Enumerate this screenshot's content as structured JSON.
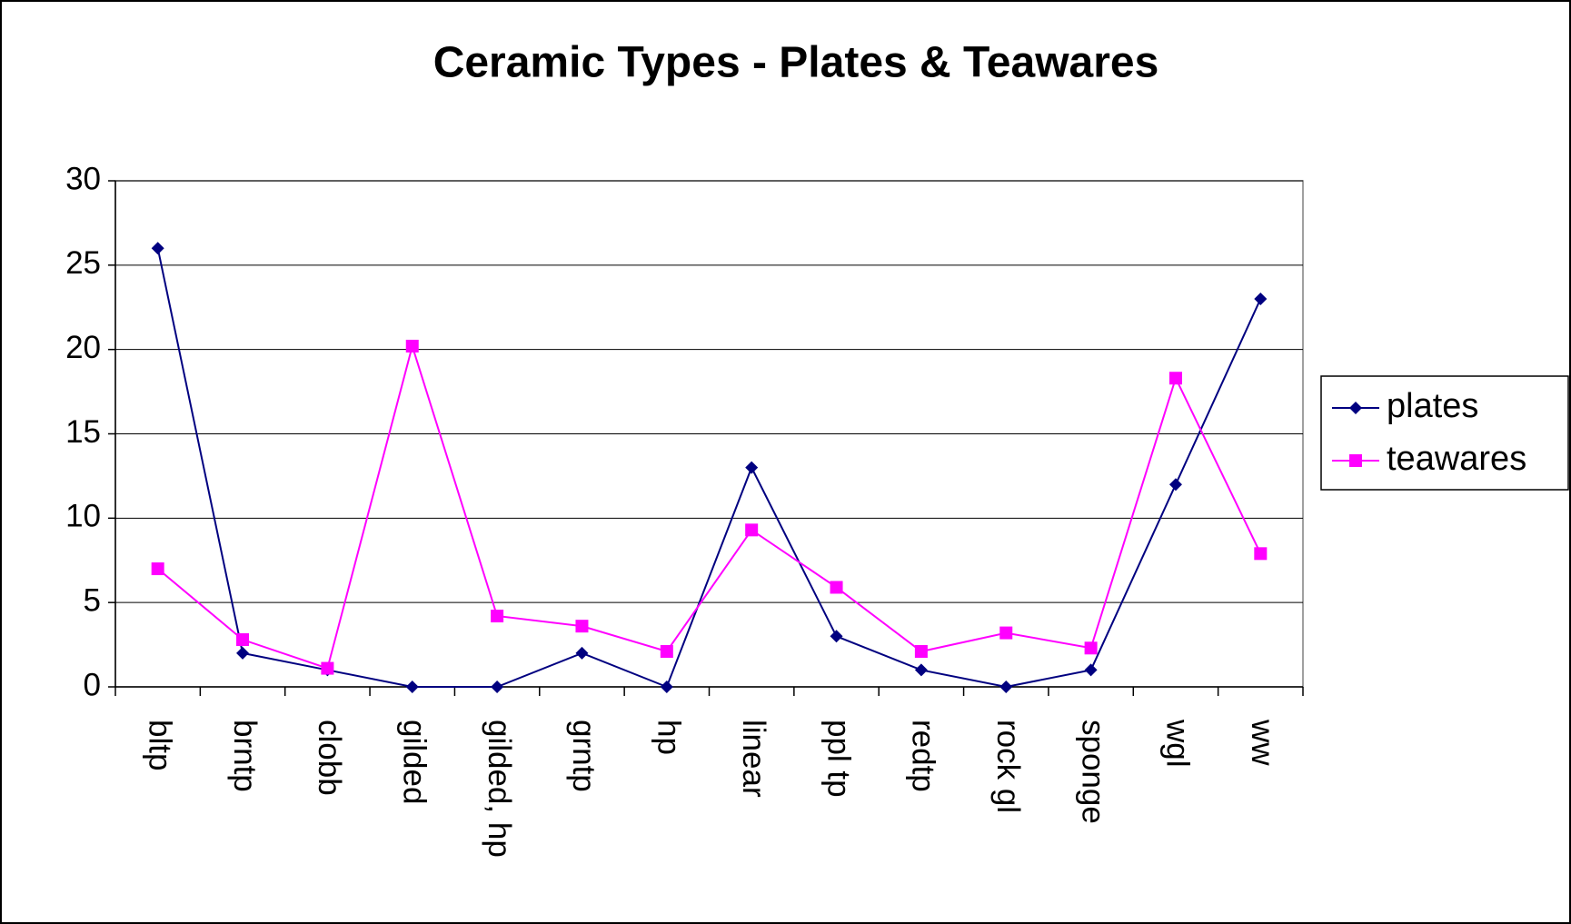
{
  "chart_data": {
    "type": "line",
    "title": "Ceramic Types - Plates & Teawares",
    "categories": [
      "bltp",
      "brntp",
      "clobb",
      "gilded",
      "gilded, hp",
      "grntp",
      "hp",
      "linear",
      "ppl tp",
      "redtp",
      "rock gl",
      "sponge",
      "wgl",
      "ww"
    ],
    "series": [
      {
        "name": "plates",
        "color": "#000080",
        "marker": "diamond",
        "values": [
          26,
          2,
          1,
          0,
          0,
          2,
          0,
          13,
          3,
          1,
          0,
          1,
          12,
          23
        ]
      },
      {
        "name": "teawares",
        "color": "#ff00ff",
        "marker": "square",
        "values": [
          7,
          2.8,
          1.1,
          20.2,
          4.2,
          3.6,
          2.1,
          9.3,
          5.9,
          2.1,
          3.2,
          2.3,
          18.3,
          7.9
        ]
      }
    ],
    "ylim": [
      0,
      30
    ],
    "yticks": [
      0,
      5,
      10,
      15,
      20,
      25,
      30
    ],
    "grid": true,
    "legend": "right"
  }
}
